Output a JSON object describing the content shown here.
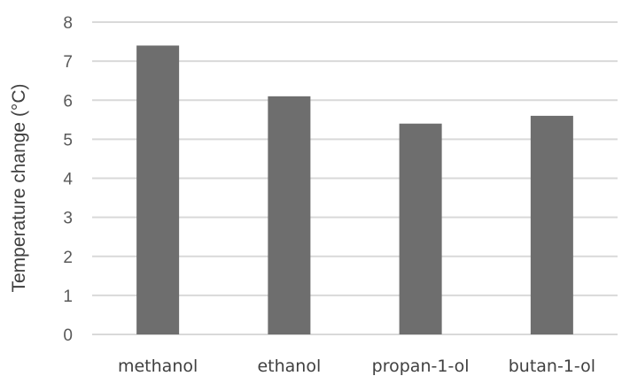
{
  "chart_data": {
    "type": "bar",
    "categories": [
      "methanol",
      "ethanol",
      "propan-1-ol",
      "butan-1-ol"
    ],
    "values": [
      7.4,
      6.1,
      5.4,
      5.6
    ],
    "ylabel": "Temperature change (°C)",
    "xlabel": "",
    "ylim": [
      0,
      8
    ],
    "yticks": [
      "0",
      "1",
      "2",
      "3",
      "4",
      "5",
      "6",
      "7",
      "8"
    ],
    "grid": true,
    "legend": "none",
    "bar_color": "#6e6e6e",
    "grid_color": "#d9d9d9"
  }
}
